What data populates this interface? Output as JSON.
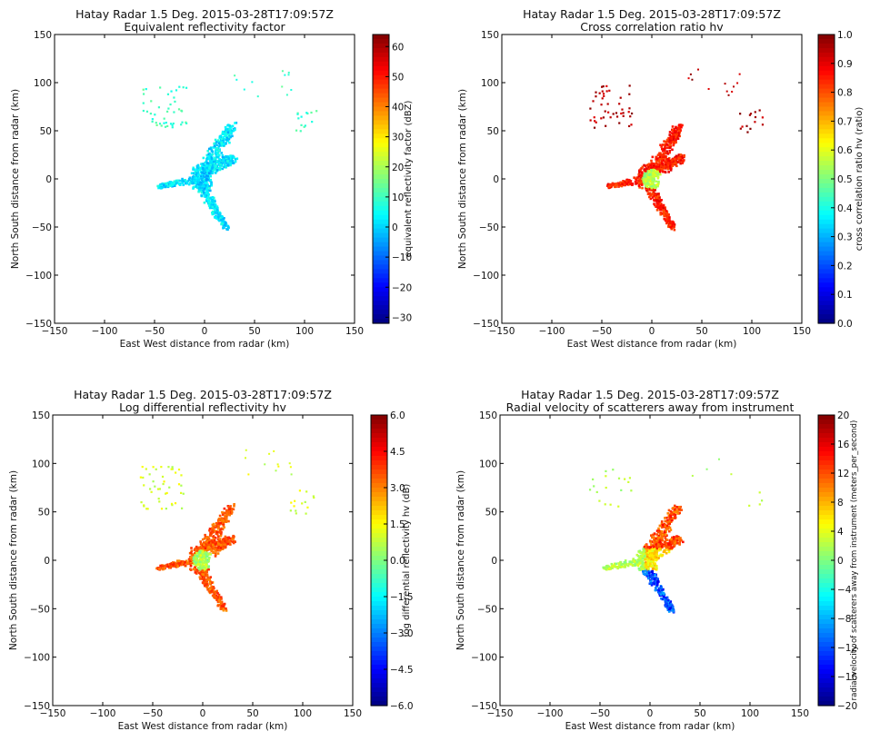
{
  "chart_data": [
    {
      "type": "scatter",
      "title": "Hatay Radar 1.5 Deg. 2015-03-28T17:09:57Z",
      "subtitle": "Equivalent reflectivity factor",
      "xlabel": "East West distance from radar (km)",
      "ylabel": "North South distance from radar (km)",
      "xlim": [
        -150,
        150
      ],
      "ylim": [
        -150,
        150
      ],
      "xticks": [
        "−150",
        "−100",
        "−50",
        "0",
        "50",
        "100",
        "150"
      ],
      "yticks": [
        "150",
        "100",
        "50",
        "0",
        "−50",
        "−100",
        "−150"
      ],
      "colorbar": {
        "label": "equivalent reflectivity factor (dBZ)",
        "range": [
          -32,
          64
        ],
        "ticks": [
          "60",
          "50",
          "40",
          "30",
          "20",
          "10",
          "0",
          "−10",
          "−20",
          "−30"
        ],
        "tick_values": [
          60,
          50,
          40,
          30,
          20,
          10,
          0,
          -10,
          -20,
          -30
        ],
        "colormap": "jet"
      },
      "echo": {
        "dominant_value": 2,
        "core_value": 0,
        "sparse_value": 10
      }
    },
    {
      "type": "scatter",
      "title": "Hatay Radar 1.5 Deg. 2015-03-28T17:09:57Z",
      "subtitle": "Cross correlation ratio hv",
      "xlabel": "East West distance from radar (km)",
      "ylabel": "North South distance from radar (km)",
      "xlim": [
        -150,
        150
      ],
      "ylim": [
        -150,
        150
      ],
      "xticks": [
        "−150",
        "−100",
        "−50",
        "0",
        "50",
        "100",
        "150"
      ],
      "yticks": [
        "150",
        "100",
        "50",
        "0",
        "−50",
        "−100",
        "−150"
      ],
      "colorbar": {
        "label": "cross correlation ratio hv (ratio)",
        "range": [
          0,
          1
        ],
        "ticks": [
          "1.0",
          "0.9",
          "0.8",
          "0.7",
          "0.6",
          "0.5",
          "0.4",
          "0.3",
          "0.2",
          "0.1",
          "0.0"
        ],
        "tick_values": [
          1.0,
          0.9,
          0.8,
          0.7,
          0.6,
          0.5,
          0.4,
          0.3,
          0.2,
          0.1,
          0.0
        ],
        "colormap": "jet"
      },
      "echo": {
        "dominant_value": 0.85,
        "core_value": 0.55,
        "sparse_value": 0.95
      }
    },
    {
      "type": "scatter",
      "title": "Hatay Radar 1.5 Deg. 2015-03-28T17:09:57Z",
      "subtitle": "Log differential reflectivity hv",
      "xlabel": "East West distance from radar (km)",
      "ylabel": "North South distance from radar (km)",
      "xlim": [
        -150,
        150
      ],
      "ylim": [
        -150,
        150
      ],
      "xticks": [
        "−150",
        "−100",
        "−50",
        "0",
        "50",
        "100",
        "150"
      ],
      "yticks": [
        "150",
        "100",
        "50",
        "0",
        "−50",
        "−100",
        "−150"
      ],
      "colorbar": {
        "label": "log differential reflectivity hv (dB)",
        "range": [
          -6,
          6
        ],
        "ticks": [
          "6.0",
          "4.5",
          "3.0",
          "1.5",
          "0.0",
          "−1.5",
          "−3.0",
          "−4.5",
          "−6.0"
        ],
        "tick_values": [
          6.0,
          4.5,
          3.0,
          1.5,
          0.0,
          -1.5,
          -3.0,
          -4.5,
          -6.0
        ],
        "colormap": "jet"
      },
      "echo": {
        "dominant_value": 3.5,
        "core_value": 0.5,
        "sparse_value": 1.0
      }
    },
    {
      "type": "scatter",
      "title": "Hatay Radar 1.5 Deg. 2015-03-28T17:09:57Z",
      "subtitle": "Radial velocity of scatterers away from instrument",
      "xlabel": "East West distance from radar (km)",
      "ylabel": "North South distance from radar (km)",
      "xlim": [
        -150,
        150
      ],
      "ylim": [
        -150,
        150
      ],
      "xticks": [
        "−150",
        "−100",
        "−50",
        "0",
        "50",
        "100",
        "150"
      ],
      "yticks": [
        "150",
        "100",
        "50",
        "0",
        "−50",
        "−100",
        "−150"
      ],
      "colorbar": {
        "label": "radial velocity of scatterers away from instrument (meters_per_second)",
        "range": [
          -20,
          20
        ],
        "ticks": [
          "20",
          "16",
          "12",
          "8",
          "4",
          "0",
          "−4",
          "−8",
          "−12",
          "−16",
          "−20"
        ],
        "tick_values": [
          20,
          16,
          12,
          8,
          4,
          0,
          -4,
          -8,
          -12,
          -16,
          -20
        ],
        "colormap": "jet"
      },
      "echo": {
        "north_value": 12,
        "west_value": 2,
        "east_value": 6,
        "south_value": -12
      }
    }
  ]
}
